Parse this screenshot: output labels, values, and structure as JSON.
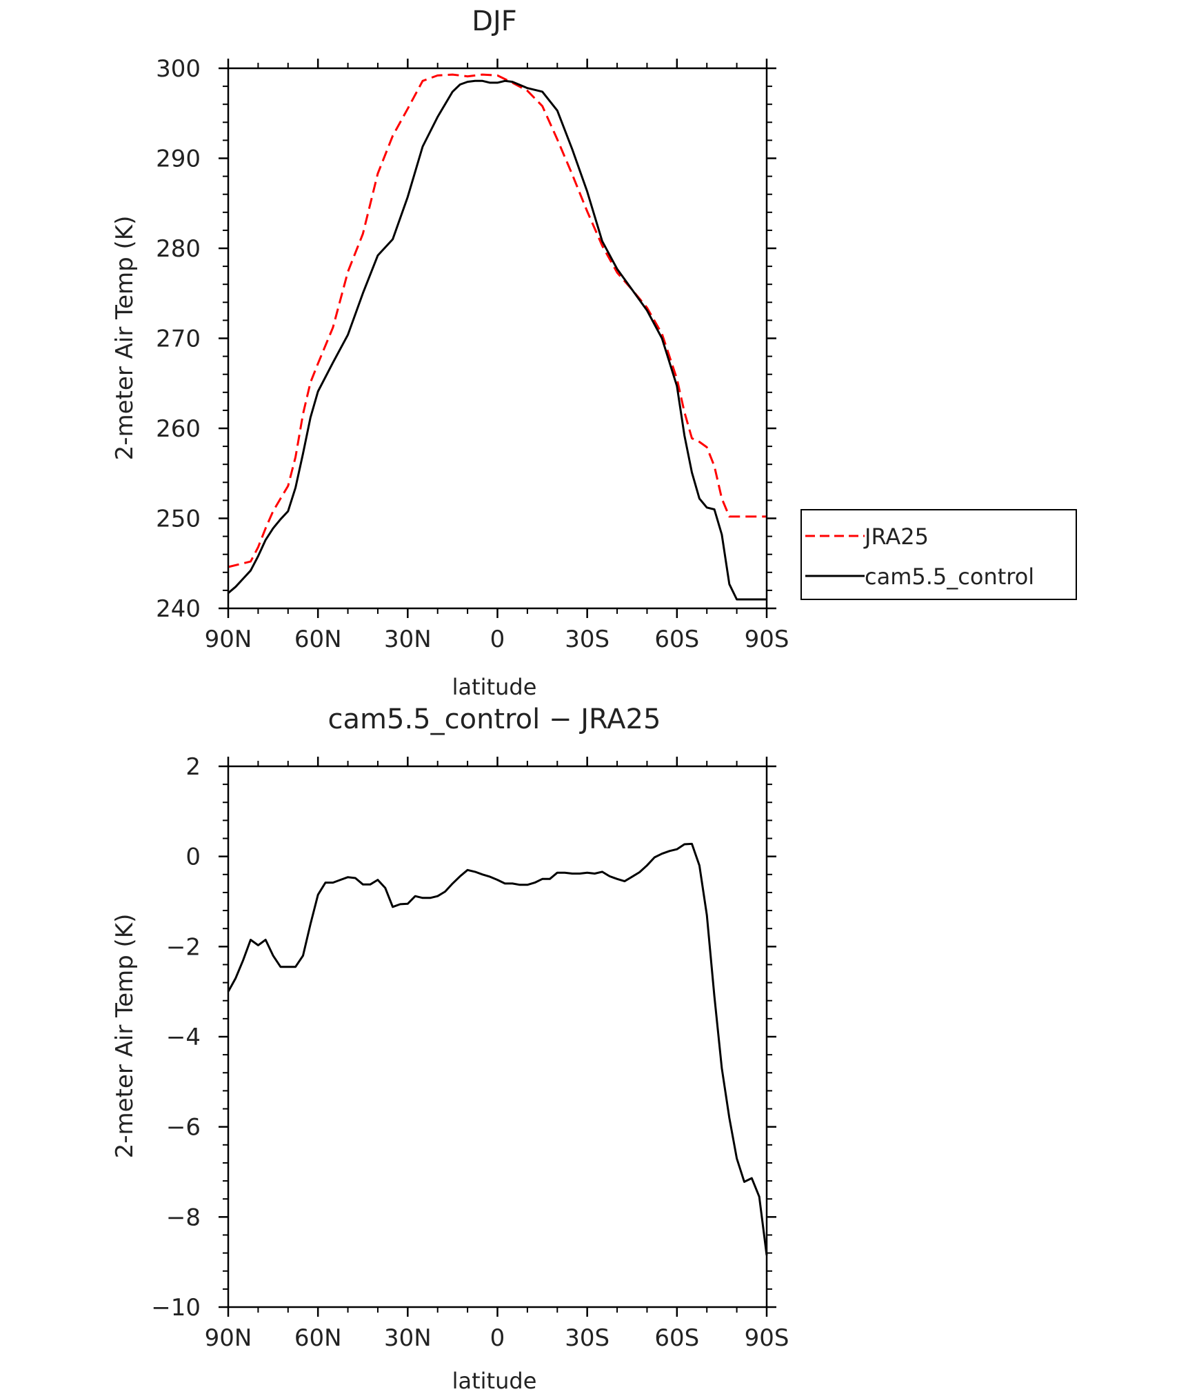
{
  "colors": {
    "background": "#ffffff",
    "axis": "#000000",
    "jra25": "#ff0000",
    "cam": "#000000",
    "diff": "#000000"
  },
  "chart_data": [
    {
      "type": "line",
      "title": "DJF",
      "xlabel": "latitude",
      "ylabel": "2-meter Air Temp (K)",
      "xlim": [
        90,
        -90
      ],
      "ylim": [
        240,
        300
      ],
      "x_ticks": [
        90,
        60,
        30,
        0,
        -30,
        -60,
        -90
      ],
      "x_tick_labels": [
        "90N",
        "60N",
        "30N",
        "0",
        "30S",
        "60S",
        "90S"
      ],
      "y_ticks": [
        240,
        250,
        260,
        270,
        280,
        290,
        300
      ],
      "y_tick_labels": [
        "240",
        "250",
        "260",
        "270",
        "280",
        "290",
        "300"
      ],
      "legend": {
        "position": "right",
        "entries": [
          "JRA25",
          "cam5.5_control"
        ]
      },
      "series": [
        {
          "name": "JRA25",
          "style": "dashed",
          "x": [
            90,
            82.5,
            80,
            77.5,
            75,
            72.5,
            70,
            67.5,
            65,
            62.5,
            60,
            55,
            50,
            45,
            40,
            35,
            30,
            25,
            20,
            15,
            12.5,
            10,
            5,
            0,
            -5,
            -10,
            -15,
            -20,
            -25,
            -30,
            -35,
            -40,
            -45,
            -50,
            -55,
            -60,
            -62.5,
            -65,
            -67.5,
            -70,
            -72.5,
            -75,
            -77.5,
            -80,
            -82.5,
            -85,
            -87.5,
            -90
          ],
          "y": [
            244.6,
            245.2,
            246.8,
            248.9,
            250.8,
            252.2,
            253.6,
            256.8,
            261.6,
            265.1,
            267.2,
            271.2,
            277.4,
            281.6,
            288.3,
            292.5,
            295.5,
            298.6,
            299.2,
            299.3,
            299.2,
            299.1,
            299.3,
            299.2,
            298.4,
            297.5,
            295.8,
            292.1,
            288.2,
            284.1,
            280.3,
            277.3,
            275.4,
            273.4,
            270.5,
            265.5,
            261.8,
            258.9,
            258.5,
            257.9,
            255.8,
            252.2,
            250.2,
            250.2,
            250.2,
            250.2,
            250.2,
            250.2
          ]
        },
        {
          "name": "cam5.5_control",
          "style": "solid",
          "x": [
            90,
            87.5,
            85,
            82.5,
            80,
            77.5,
            75,
            72.5,
            70,
            67.5,
            65,
            62.5,
            60,
            55,
            50,
            45,
            40,
            35,
            30,
            25,
            20,
            15,
            12.5,
            10,
            7.5,
            5,
            2.5,
            0,
            -2.5,
            -5,
            -10,
            -15,
            -20,
            -25,
            -30,
            -35,
            -40,
            -45,
            -50,
            -55,
            -60,
            -62.5,
            -65,
            -67.5,
            -70,
            -72.5,
            -75,
            -77.5,
            -80,
            -82.5,
            -85,
            -87.5,
            -90
          ],
          "y": [
            241.7,
            242.4,
            243.3,
            244.2,
            245.8,
            247.6,
            248.9,
            249.9,
            250.8,
            253.4,
            257.2,
            261.2,
            264.1,
            267.3,
            270.4,
            275.0,
            279.2,
            281.0,
            285.7,
            291.3,
            294.6,
            297.4,
            298.2,
            298.5,
            298.6,
            298.6,
            298.4,
            298.4,
            298.6,
            298.5,
            297.8,
            297.4,
            295.3,
            291.0,
            286.3,
            280.8,
            277.7,
            275.4,
            273.1,
            270.0,
            264.7,
            259.2,
            255.1,
            252.2,
            251.2,
            251.0,
            248.2,
            242.7,
            241.0,
            241.0,
            241.0,
            241.0,
            241.0
          ]
        }
      ]
    },
    {
      "type": "line",
      "title": "cam5.5_control − JRA25",
      "xlabel": "latitude",
      "ylabel": "2-meter Air Temp (K)",
      "xlim": [
        90,
        -90
      ],
      "ylim": [
        -10,
        2
      ],
      "x_ticks": [
        90,
        60,
        30,
        0,
        -30,
        -60,
        -90
      ],
      "x_tick_labels": [
        "90N",
        "60N",
        "30N",
        "0",
        "30S",
        "60S",
        "90S"
      ],
      "y_ticks": [
        2,
        0,
        -2,
        -4,
        -6,
        -8,
        -10
      ],
      "y_tick_labels": [
        "2",
        "0",
        "−2",
        "−4",
        "−6",
        "−8",
        "−10"
      ],
      "series": [
        {
          "style": "solid",
          "x": [
            90,
            87.5,
            85,
            82.5,
            80,
            77.5,
            75,
            72.5,
            70,
            67.5,
            65,
            62.5,
            60,
            57.5,
            55,
            52.5,
            50,
            47.5,
            45,
            42.5,
            40,
            37.5,
            35,
            32.5,
            30,
            27.5,
            25,
            22.5,
            20,
            17.5,
            15,
            12.5,
            10,
            7.5,
            5,
            2.5,
            0,
            -2.5,
            -5,
            -7.5,
            -10,
            -12.5,
            -15,
            -17.5,
            -20,
            -22.5,
            -25,
            -27.5,
            -30,
            -32.5,
            -35,
            -37.5,
            -40,
            -42.5,
            -45,
            -47.5,
            -50,
            -52.5,
            -55,
            -57.5,
            -60,
            -62.5,
            -65,
            -67.5,
            -70,
            -72.5,
            -75,
            -77.5,
            -80,
            -82.5,
            -85,
            -87.5,
            -90
          ],
          "y": [
            -3.0,
            -2.7,
            -2.3,
            -1.85,
            -1.97,
            -1.85,
            -2.2,
            -2.45,
            -2.45,
            -2.45,
            -2.2,
            -1.5,
            -0.85,
            -0.58,
            -0.58,
            -0.52,
            -0.46,
            -0.48,
            -0.62,
            -0.62,
            -0.52,
            -0.7,
            -1.12,
            -1.06,
            -1.05,
            -0.88,
            -0.92,
            -0.92,
            -0.88,
            -0.78,
            -0.6,
            -0.44,
            -0.3,
            -0.34,
            -0.4,
            -0.45,
            -0.52,
            -0.6,
            -0.6,
            -0.63,
            -0.63,
            -0.58,
            -0.5,
            -0.5,
            -0.36,
            -0.36,
            -0.38,
            -0.38,
            -0.36,
            -0.38,
            -0.34,
            -0.44,
            -0.5,
            -0.55,
            -0.45,
            -0.35,
            -0.2,
            -0.02,
            0.06,
            0.12,
            0.16,
            0.27,
            0.28,
            -0.2,
            -1.3,
            -3.1,
            -4.7,
            -5.8,
            -6.7,
            -7.22,
            -7.14,
            -7.55,
            -8.85
          ]
        }
      ]
    }
  ]
}
